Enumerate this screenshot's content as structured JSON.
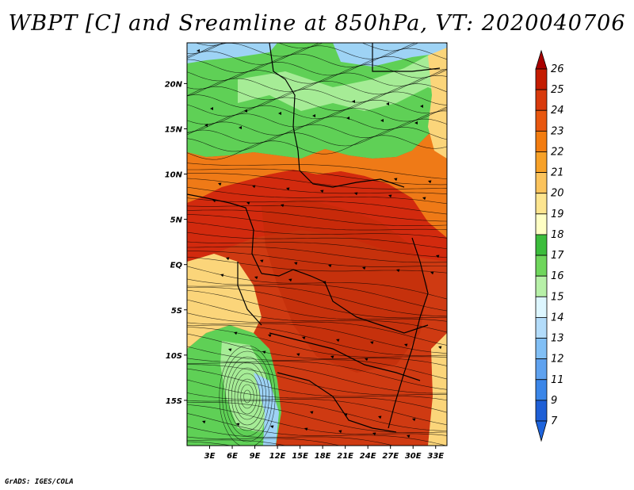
{
  "title": "WBPT [C] and Sreamline at 850hPa, VT: 2020040706",
  "footer": "GrADS: IGES/COLA",
  "map": {
    "lat_labels": [
      "20N",
      "15N",
      "10N",
      "5N",
      "EQ",
      "5S",
      "10S",
      "15S"
    ],
    "lon_labels": [
      "3E",
      "6E",
      "9E",
      "12E",
      "15E",
      "18E",
      "21E",
      "24E",
      "27E",
      "30E",
      "33E"
    ],
    "lon_range": [
      0,
      34.5
    ],
    "lat_range": [
      -20,
      24.5
    ],
    "background": "#cf3a12",
    "regions": [
      {
        "name": "cool-north-band",
        "color": "#5fd056"
      },
      {
        "name": "pale-north-band",
        "color": "#a6ec96"
      },
      {
        "name": "sky-north-corner",
        "color": "#9ed3f5"
      },
      {
        "name": "sahel-orange",
        "color": "#ef7a17"
      },
      {
        "name": "gulf-red",
        "color": "#d22a0e"
      },
      {
        "name": "southwest-green",
        "color": "#5fd056"
      },
      {
        "name": "southwest-pale",
        "color": "#a6ec96"
      },
      {
        "name": "southwest-sky",
        "color": "#9ed3f5"
      },
      {
        "name": "southwest-yellow",
        "color": "#fbd57a"
      },
      {
        "name": "east-yellow",
        "color": "#fbd57a"
      },
      {
        "name": "congo-core",
        "color": "#c02a08"
      }
    ]
  },
  "colorbar": {
    "levels": [
      "26",
      "25",
      "24",
      "23",
      "22",
      "21",
      "20",
      "19",
      "18",
      "17",
      "16",
      "15",
      "14",
      "13",
      "12",
      "11",
      "9",
      "7"
    ],
    "colors": [
      "#a80000",
      "#c41c00",
      "#d83a0c",
      "#e8570f",
      "#f27c10",
      "#f7a128",
      "#fbc35c",
      "#fde58f",
      "#ffffc4",
      "#3cbd3c",
      "#6fd65c",
      "#b7f0a8",
      "#ddf6ff",
      "#b3dcfa",
      "#81bff5",
      "#5fa2ef",
      "#3b86e8",
      "#1e5fd6",
      "#1e64dc"
    ]
  }
}
